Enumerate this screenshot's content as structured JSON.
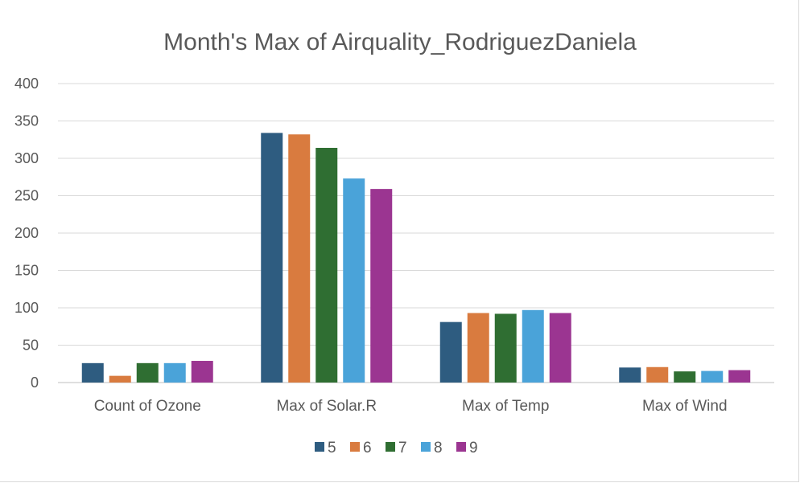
{
  "chart_data": {
    "type": "bar",
    "title": "Month's Max of Airquality_RodriguezDaniela",
    "xlabel": "",
    "ylabel": "",
    "categories": [
      "Count of Ozone",
      "Max of Solar.R",
      "Max of Temp",
      "Max of Wind"
    ],
    "series": [
      {
        "name": "5",
        "color": "#2e5c80",
        "values": [
          26,
          334,
          81,
          20.1
        ]
      },
      {
        "name": "6",
        "color": "#d97b3f",
        "values": [
          9,
          332,
          93,
          20.7
        ]
      },
      {
        "name": "7",
        "color": "#2f6e32",
        "values": [
          26,
          314,
          92,
          14.9
        ]
      },
      {
        "name": "8",
        "color": "#4aa3d9",
        "values": [
          26,
          273,
          97,
          15.5
        ]
      },
      {
        "name": "9",
        "color": "#9b3591",
        "values": [
          29,
          259,
          93,
          16.6
        ]
      }
    ],
    "ylim": [
      0,
      400
    ],
    "yticks": [
      0,
      50,
      100,
      150,
      200,
      250,
      300,
      350,
      400
    ],
    "grid": true,
    "legend": "bottom"
  }
}
